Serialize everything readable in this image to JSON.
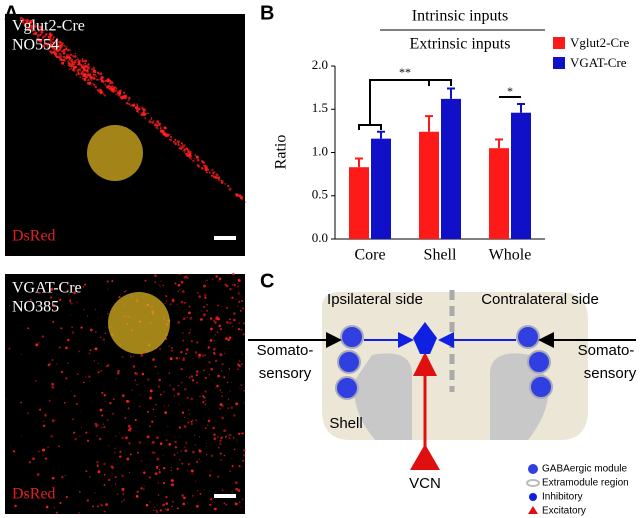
{
  "panel_labels": [
    "A",
    "B",
    "C"
  ],
  "images": [
    {
      "lines": [
        "Vglut2-Cre",
        "NO554"
      ],
      "stain": "DsRed"
    },
    {
      "lines": [
        "VGAT-Cre",
        "NO385"
      ],
      "stain": "DsRed"
    }
  ],
  "chart_data": {
    "type": "bar",
    "title": "Intrinsic inputs",
    "subtitle": "Extrinsic inputs",
    "y_label": "Ratio",
    "categories": [
      "Core",
      "Shell",
      "Whole"
    ],
    "series": [
      {
        "name": "Vglut2-Cre",
        "color": "#ff1a1a",
        "values": [
          0.83,
          1.24,
          1.05
        ],
        "errors": [
          0.1,
          0.18,
          0.1
        ]
      },
      {
        "name": "VGAT-Cre",
        "color": "#1010c8",
        "values": [
          1.16,
          1.62,
          1.46
        ],
        "errors": [
          0.08,
          0.12,
          0.1
        ]
      }
    ],
    "ylim": [
      0,
      2
    ],
    "yticks": [
      {
        "value": 0,
        "label": "0.0"
      },
      0.5,
      {
        "value": 1,
        "label": "1.0"
      },
      1.5,
      {
        "value": 2,
        "label": "2.0"
      }
    ],
    "annotations": [
      "**",
      "*"
    ],
    "legend": "upper right"
  },
  "diagram": {
    "left_side": "Ipsilateral side",
    "right_side": "Contralateral side",
    "left_input": [
      "Somato-",
      "sensory"
    ],
    "right_input": [
      "Somato-",
      "sensory"
    ],
    "region": "Shell",
    "source": "VCN",
    "legend": [
      "GABAergic module",
      "Extramodule region",
      "Inhibitory",
      "Excitatory"
    ]
  }
}
